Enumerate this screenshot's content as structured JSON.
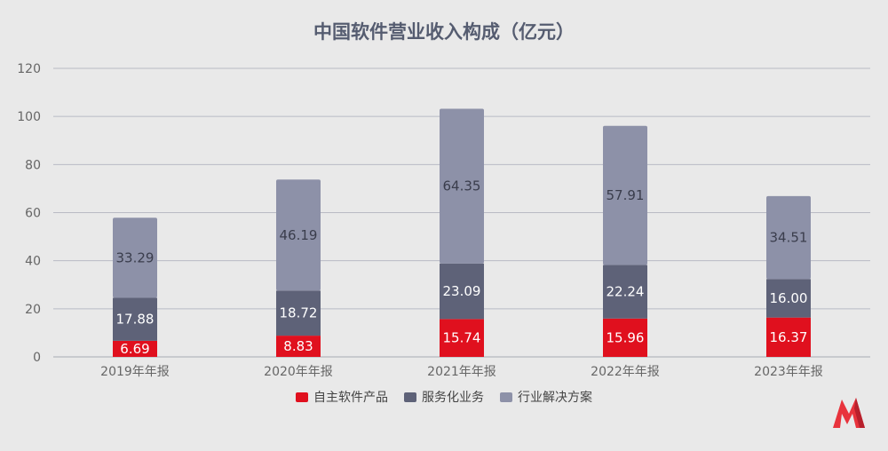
{
  "chart_data": {
    "type": "bar",
    "stacked": true,
    "title": "中国软件营业收入构成（亿元）",
    "categories": [
      "2019年年报",
      "2020年年报",
      "2021年年报",
      "2022年年报",
      "2023年年报"
    ],
    "series": [
      {
        "name": "自主软件产品",
        "values": [
          6.69,
          8.83,
          15.74,
          15.96,
          16.37
        ],
        "color": "#e0101e",
        "label_color": "#ffffff"
      },
      {
        "name": "服务化业务",
        "values": [
          17.88,
          18.72,
          23.09,
          22.24,
          16.0
        ],
        "color": "#5e6278",
        "label_color": "#ffffff"
      },
      {
        "name": "行业解决方案",
        "values": [
          33.29,
          46.19,
          64.35,
          57.91,
          34.51
        ],
        "color": "#8d91a8",
        "label_color": "#3a3d4c"
      }
    ],
    "ylim": [
      0,
      120
    ],
    "yticks": [
      0,
      20,
      40,
      60,
      80,
      100,
      120
    ],
    "grid": true,
    "legend_position": "bottom"
  },
  "logo": {
    "colors": [
      "#e8333c",
      "#b8202c"
    ]
  }
}
